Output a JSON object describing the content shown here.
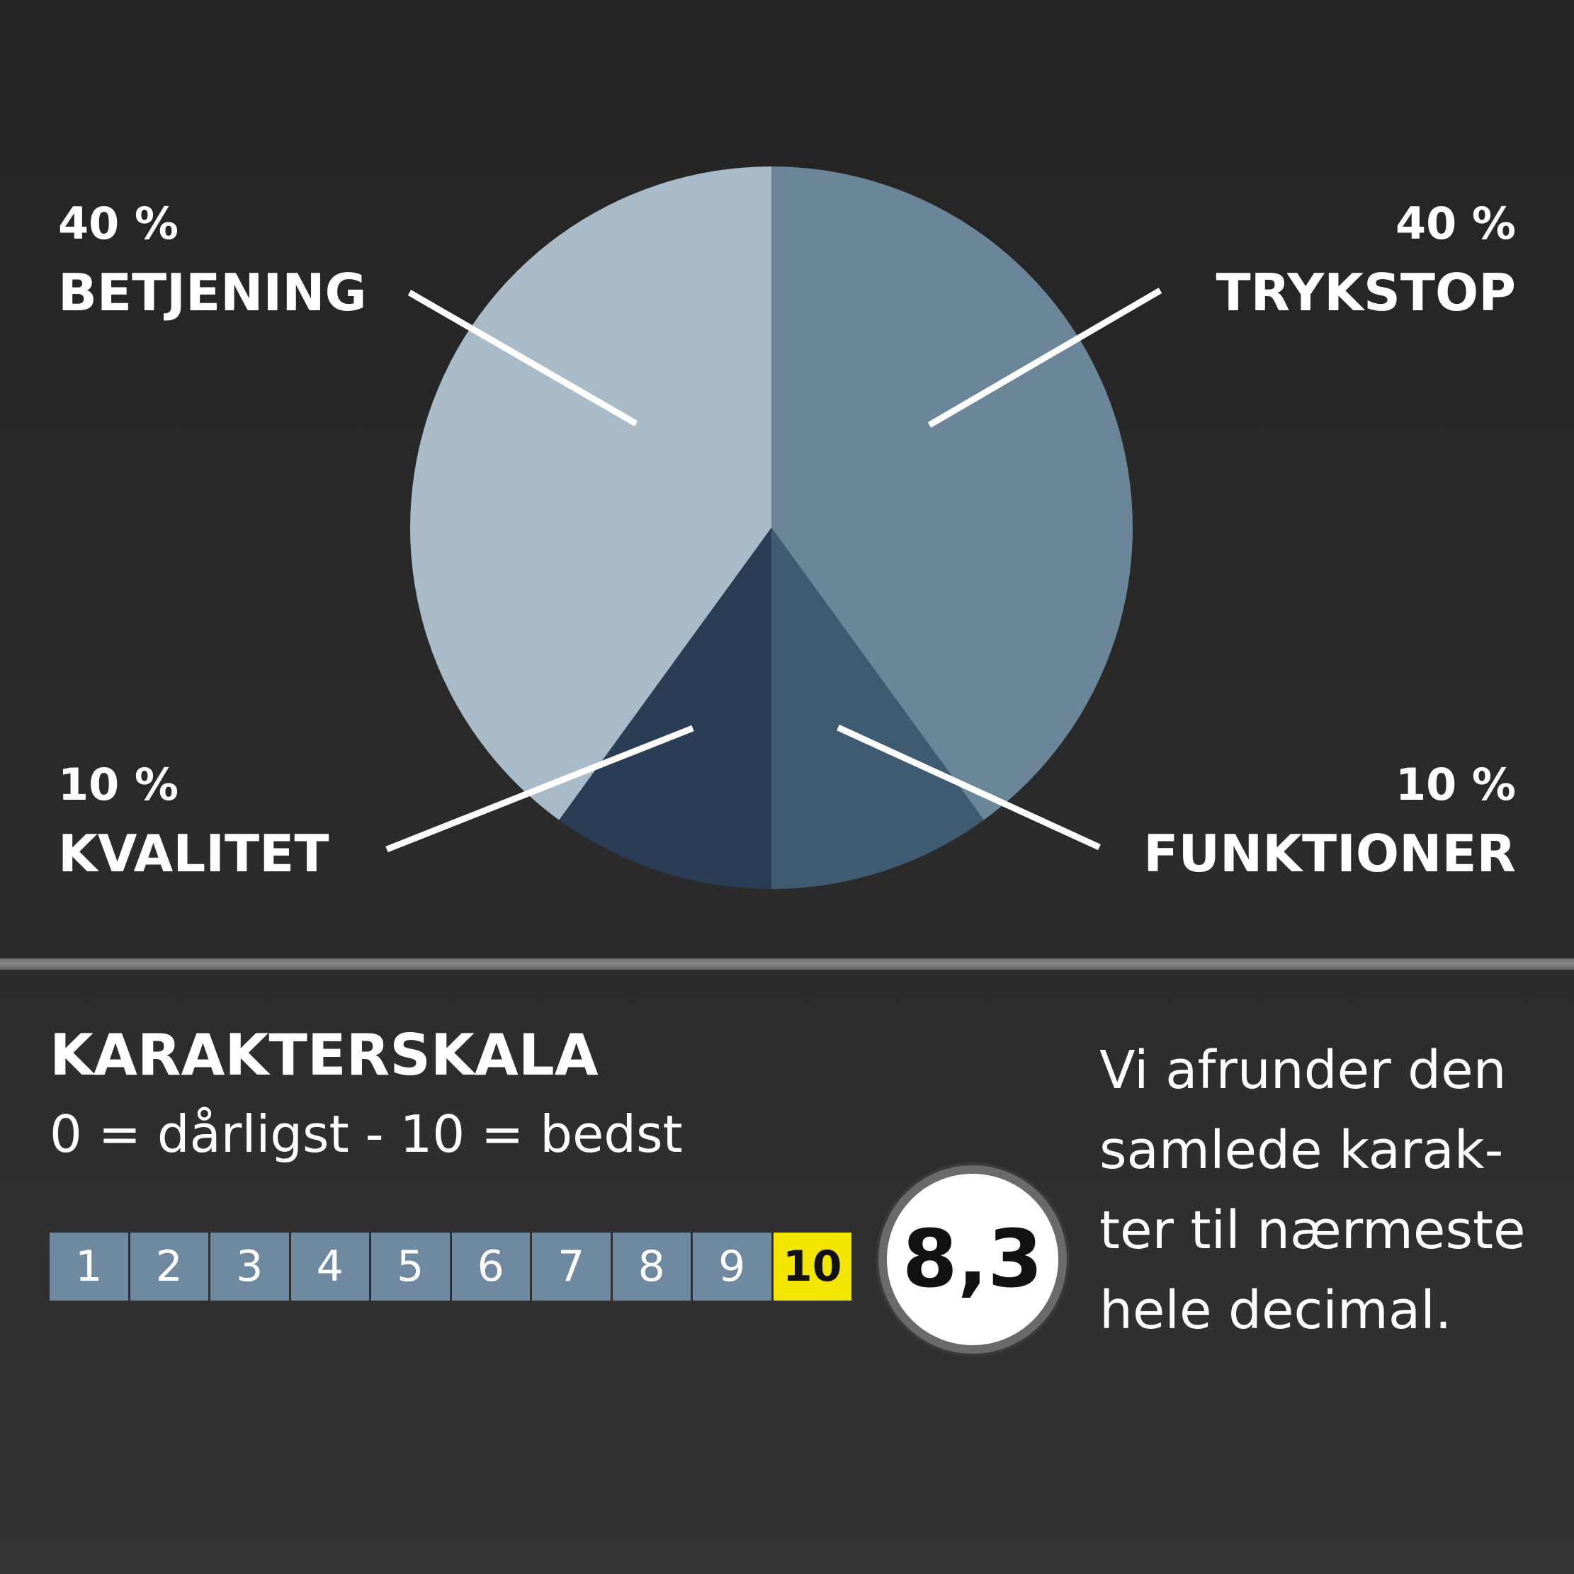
{
  "chart_data": {
    "type": "pie",
    "slices": [
      {
        "label": "BETJENING",
        "percent_label": "40 %",
        "value": 40,
        "color": "#a9bbc8"
      },
      {
        "label": "TRYKSTOP",
        "percent_label": "40 %",
        "value": 40,
        "color": "#6b8599"
      },
      {
        "label": "FUNKTIONER",
        "percent_label": "10 %",
        "value": 10,
        "color": "#3f5b72"
      },
      {
        "label": "KVALITET",
        "percent_label": "10 %",
        "value": 10,
        "color": "#2a3d55"
      }
    ]
  },
  "scale": {
    "title": "KARAKTERSKALA",
    "subtitle": "0 = dårligst - 10 = bedst",
    "steps": [
      "1",
      "2",
      "3",
      "4",
      "5",
      "6",
      "7",
      "8",
      "9",
      "10"
    ],
    "active_step": "10",
    "colors": {
      "cell": "#6f8aa0",
      "active": "#f2e600"
    }
  },
  "score": {
    "value": "8,3"
  },
  "note": {
    "lines": [
      "Vi afrunder den",
      "samlede karak-",
      "ter til nærmeste",
      "hele decimal."
    ]
  }
}
